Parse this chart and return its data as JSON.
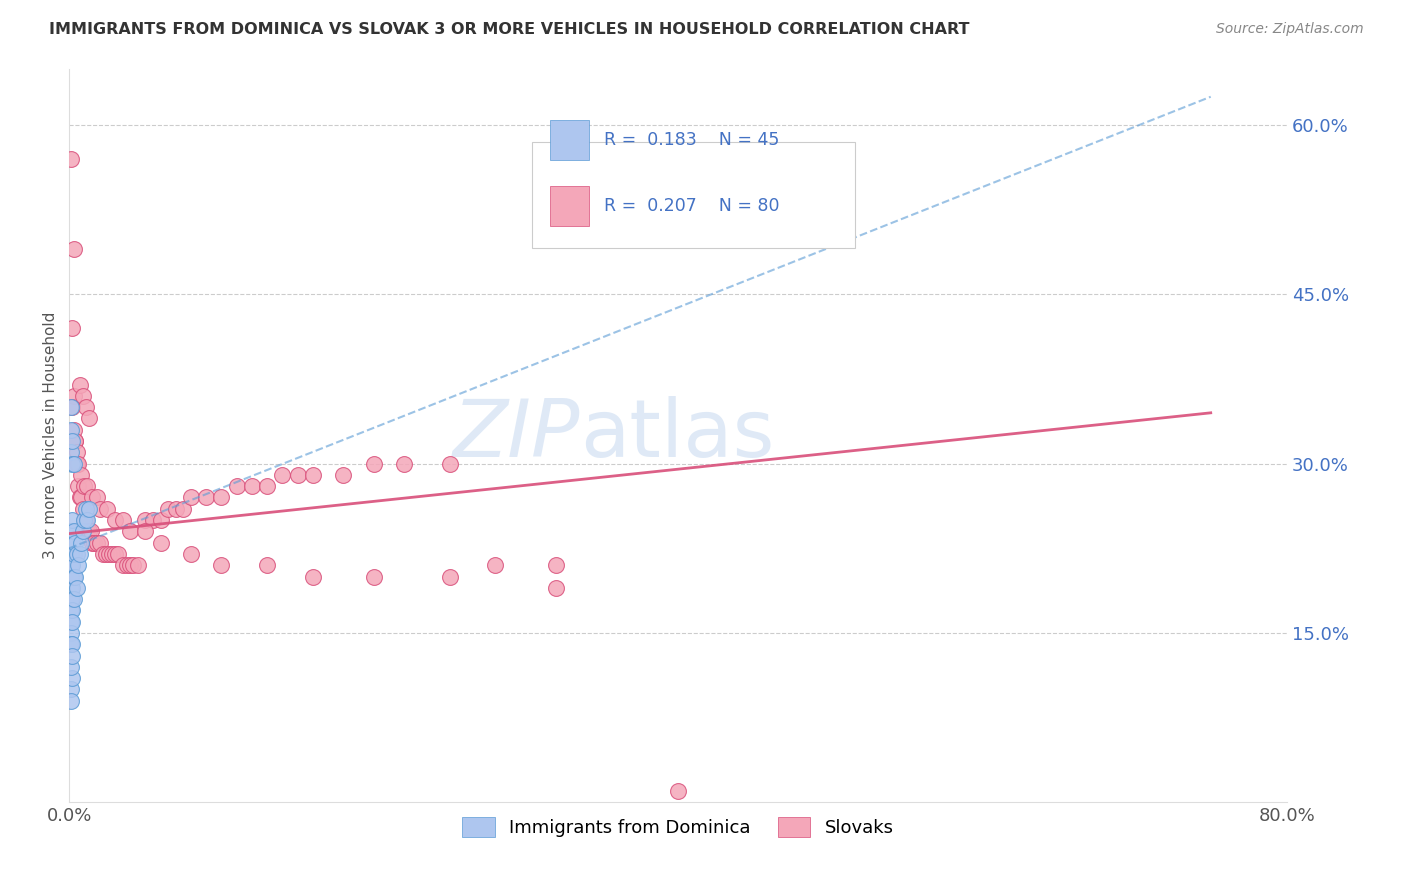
{
  "title": "IMMIGRANTS FROM DOMINICA VS SLOVAK 3 OR MORE VEHICLES IN HOUSEHOLD CORRELATION CHART",
  "source": "Source: ZipAtlas.com",
  "ylabel": "3 or more Vehicles in Household",
  "right_yticklabels": [
    "15.0%",
    "30.0%",
    "45.0%",
    "60.0%"
  ],
  "right_yticks": [
    0.15,
    0.3,
    0.45,
    0.6
  ],
  "xlim": [
    0.0,
    0.8
  ],
  "ylim": [
    0.0,
    0.65
  ],
  "color_dominica": "#aec6ef",
  "color_slovak": "#f4a7b9",
  "line_color_dominica": "#5b9bd5",
  "line_color_slovak": "#d94f7a",
  "watermark_zip": "ZIP",
  "watermark_atlas": "atlas",
  "watermark_color_zip": "#c5d8f0",
  "watermark_color_atlas": "#c5d8f0",
  "dom_x": [
    0.001,
    0.001,
    0.001,
    0.001,
    0.001,
    0.001,
    0.001,
    0.001,
    0.001,
    0.001,
    0.002,
    0.002,
    0.002,
    0.002,
    0.002,
    0.002,
    0.002,
    0.002,
    0.003,
    0.003,
    0.003,
    0.003,
    0.004,
    0.004,
    0.005,
    0.005,
    0.006,
    0.007,
    0.008,
    0.009,
    0.01,
    0.011,
    0.012,
    0.013,
    0.001,
    0.001,
    0.001,
    0.002,
    0.002,
    0.003,
    0.001,
    0.002,
    0.001,
    0.001,
    0.002
  ],
  "dom_y": [
    0.24,
    0.22,
    0.21,
    0.2,
    0.19,
    0.18,
    0.17,
    0.16,
    0.15,
    0.14,
    0.25,
    0.23,
    0.21,
    0.19,
    0.18,
    0.17,
    0.16,
    0.14,
    0.24,
    0.22,
    0.2,
    0.18,
    0.23,
    0.2,
    0.22,
    0.19,
    0.21,
    0.22,
    0.23,
    0.24,
    0.25,
    0.26,
    0.25,
    0.26,
    0.35,
    0.33,
    0.31,
    0.32,
    0.3,
    0.3,
    0.1,
    0.11,
    0.09,
    0.12,
    0.13
  ],
  "slo_x": [
    0.001,
    0.002,
    0.003,
    0.004,
    0.005,
    0.006,
    0.007,
    0.008,
    0.009,
    0.01,
    0.011,
    0.012,
    0.013,
    0.014,
    0.015,
    0.016,
    0.018,
    0.02,
    0.022,
    0.024,
    0.026,
    0.028,
    0.03,
    0.032,
    0.035,
    0.038,
    0.04,
    0.042,
    0.045,
    0.05,
    0.055,
    0.06,
    0.065,
    0.07,
    0.075,
    0.08,
    0.09,
    0.1,
    0.11,
    0.12,
    0.13,
    0.14,
    0.15,
    0.16,
    0.18,
    0.2,
    0.22,
    0.25,
    0.28,
    0.32,
    0.002,
    0.003,
    0.004,
    0.005,
    0.006,
    0.008,
    0.01,
    0.012,
    0.015,
    0.018,
    0.02,
    0.025,
    0.03,
    0.035,
    0.04,
    0.05,
    0.06,
    0.08,
    0.1,
    0.13,
    0.16,
    0.2,
    0.25,
    0.32,
    0.007,
    0.009,
    0.011,
    0.013,
    0.4,
    0.003
  ],
  "slo_y": [
    0.57,
    0.42,
    0.36,
    0.32,
    0.3,
    0.28,
    0.27,
    0.27,
    0.26,
    0.25,
    0.25,
    0.24,
    0.24,
    0.24,
    0.23,
    0.23,
    0.23,
    0.23,
    0.22,
    0.22,
    0.22,
    0.22,
    0.22,
    0.22,
    0.21,
    0.21,
    0.21,
    0.21,
    0.21,
    0.25,
    0.25,
    0.25,
    0.26,
    0.26,
    0.26,
    0.27,
    0.27,
    0.27,
    0.28,
    0.28,
    0.28,
    0.29,
    0.29,
    0.29,
    0.29,
    0.3,
    0.3,
    0.3,
    0.21,
    0.21,
    0.35,
    0.33,
    0.32,
    0.31,
    0.3,
    0.29,
    0.28,
    0.28,
    0.27,
    0.27,
    0.26,
    0.26,
    0.25,
    0.25,
    0.24,
    0.24,
    0.23,
    0.22,
    0.21,
    0.21,
    0.2,
    0.2,
    0.2,
    0.19,
    0.37,
    0.36,
    0.35,
    0.34,
    0.01,
    0.49
  ],
  "blue_line_x0": 0.0,
  "blue_line_y0": 0.225,
  "blue_line_x1": 0.75,
  "blue_line_y1": 0.625,
  "pink_line_x0": 0.0,
  "pink_line_y0": 0.238,
  "pink_line_x1": 0.75,
  "pink_line_y1": 0.345
}
